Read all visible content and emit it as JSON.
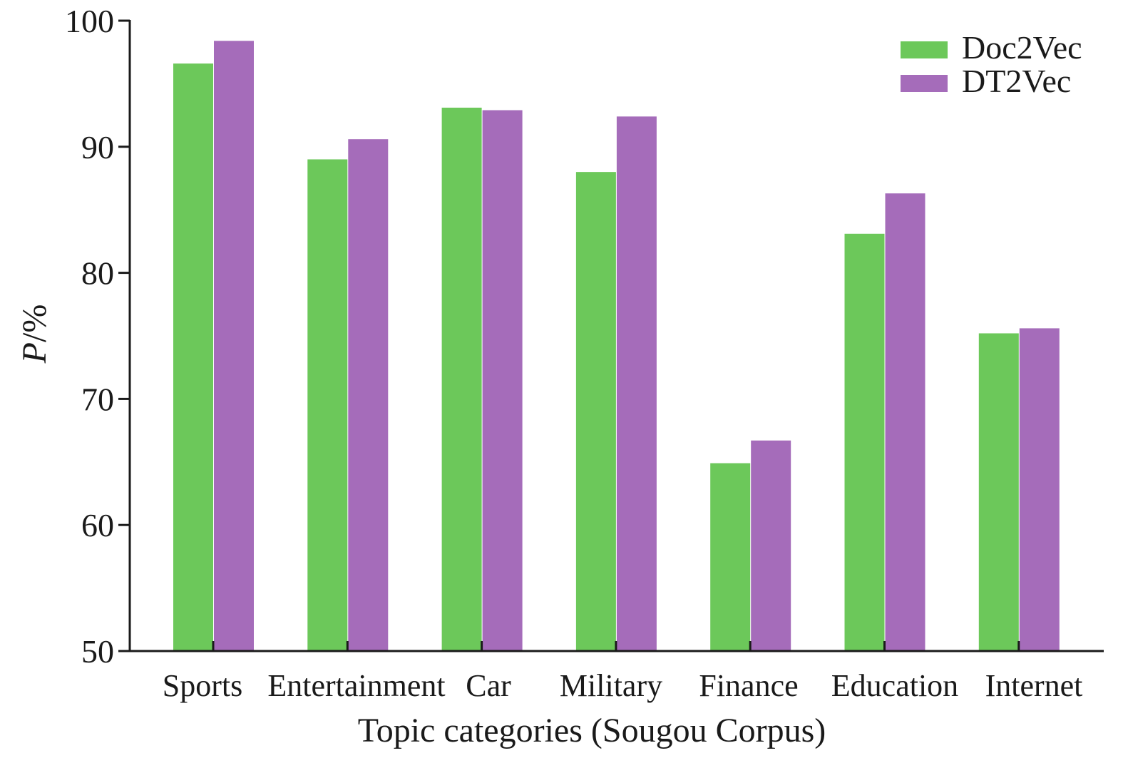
{
  "chart_data": {
    "type": "bar",
    "title": "",
    "xlabel": "Topic categories (Sougou Corpus)",
    "ylabel_italic": "P",
    "ylabel_rest": "/%",
    "ylim": [
      50,
      100
    ],
    "yticks": [
      50,
      60,
      70,
      80,
      90,
      100
    ],
    "grid": false,
    "legend_position": "top-right",
    "categories": [
      "Sports",
      "Entertainment",
      "Car",
      "Military",
      "Finance",
      "Education",
      "Internet"
    ],
    "series": [
      {
        "name": "Doc2Vec",
        "color": "#6cc85a",
        "values": [
          96.6,
          89.0,
          93.1,
          88.0,
          64.9,
          83.1,
          75.2
        ]
      },
      {
        "name": "DT2Vec",
        "color": "#a56cba",
        "values": [
          98.4,
          90.6,
          92.9,
          92.4,
          66.7,
          86.3,
          75.6
        ]
      }
    ]
  }
}
